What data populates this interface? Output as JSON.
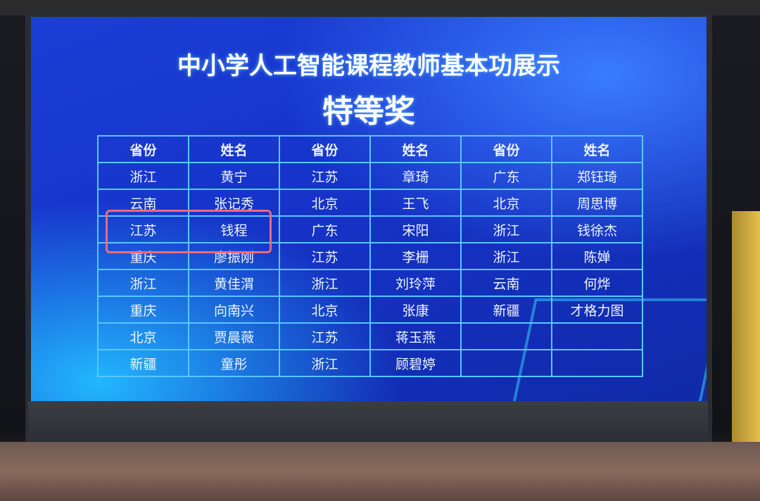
{
  "screen": {
    "title": "中小学人工智能课程教师基本功展示",
    "subtitle": "特等奖"
  },
  "table": {
    "headers": [
      "省份",
      "姓名",
      "省份",
      "姓名",
      "省份",
      "姓名"
    ],
    "rows": [
      [
        "浙江",
        "黄宁",
        "江苏",
        "章琦",
        "广东",
        "郑钰琦"
      ],
      [
        "云南",
        "张记秀",
        "北京",
        "王飞",
        "北京",
        "周思博"
      ],
      [
        "江苏",
        "钱程",
        "广东",
        "宋阳",
        "浙江",
        "钱徐杰"
      ],
      [
        "重庆",
        "廖振刚",
        "江苏",
        "李栅",
        "浙江",
        "陈婵"
      ],
      [
        "浙江",
        "黄佳渭",
        "浙江",
        "刘玲萍",
        "云南",
        "何烨"
      ],
      [
        "重庆",
        "向南兴",
        "北京",
        "张康",
        "新疆",
        "才格力图"
      ],
      [
        "北京",
        "贾晨薇",
        "江苏",
        "蒋玉燕",
        "",
        ""
      ],
      [
        "新疆",
        "童彤",
        "浙江",
        "顾碧婷",
        "",
        ""
      ]
    ],
    "highlighted_row": 2
  },
  "colors": {
    "screen_blue": "#1633c8",
    "grid_line": "#58c6ff",
    "highlight_box": "#f06a7a"
  }
}
